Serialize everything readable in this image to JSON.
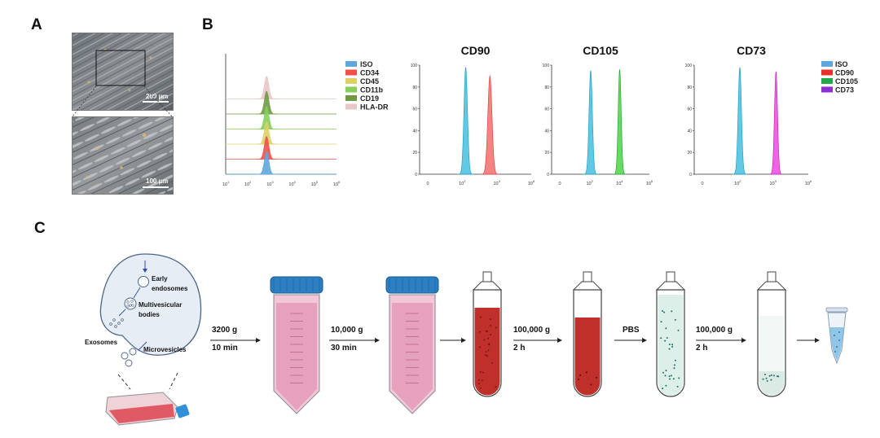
{
  "panels": {
    "a": "A",
    "b": "B",
    "c": "C"
  },
  "panel_a": {
    "top_scale": "200 µm",
    "bottom_scale": "100 µm"
  },
  "panel_b": {
    "overlay_legend": [
      "ISO",
      "CD34",
      "CD45",
      "CD11b",
      "CD19",
      "HLA-DR"
    ],
    "overlay_colors": [
      "#5fa7dd",
      "#f0504a",
      "#ded067",
      "#86cf5c",
      "#6f9a43",
      "#e8c7c6"
    ],
    "marker_titles": [
      "CD90",
      "CD105",
      "CD73"
    ],
    "marker_legend": [
      "ISO",
      "CD90",
      "CD105",
      "CD73"
    ],
    "marker_legend_colors": [
      "#5fa7dd",
      "#e8302a",
      "#22a84a",
      "#8e2fd0"
    ],
    "y_ticks": [
      "0",
      "20",
      "40",
      "60",
      "80",
      "100"
    ],
    "x_ticks": [
      {
        "base": "10",
        "exp": "1"
      },
      {
        "base": "10",
        "exp": "2"
      },
      {
        "base": "10",
        "exp": "3"
      },
      {
        "base": "10",
        "exp": "4"
      },
      {
        "base": "10",
        "exp": "5"
      },
      {
        "base": "10",
        "exp": "6"
      }
    ],
    "x_ticks_zero": [
      {
        "base": "0",
        "exp": ""
      },
      {
        "base": "10",
        "exp": "2"
      },
      {
        "base": "10",
        "exp": "4"
      },
      {
        "base": "10",
        "exp": "6"
      }
    ]
  },
  "chart_data": [
    {
      "type": "area",
      "chart": "overlay",
      "x_scale": "log",
      "xlim": [
        10,
        1000000
      ],
      "series": [
        {
          "name": "ISO",
          "peak_x": 700
        },
        {
          "name": "CD34",
          "peak_x": 700
        },
        {
          "name": "CD45",
          "peak_x": 700
        },
        {
          "name": "CD11b",
          "peak_x": 700
        },
        {
          "name": "CD19",
          "peak_x": 700
        },
        {
          "name": "HLA-DR",
          "peak_x": 700
        }
      ]
    },
    {
      "type": "area",
      "title": "CD90",
      "x_scale": "log",
      "ylim": [
        0,
        100
      ],
      "series": [
        {
          "name": "ISO",
          "peak_x": 300,
          "peak_y": 98
        },
        {
          "name": "CD90",
          "peak_x": 6000,
          "peak_y": 90
        }
      ]
    },
    {
      "type": "area",
      "title": "CD105",
      "x_scale": "log",
      "ylim": [
        0,
        100
      ],
      "series": [
        {
          "name": "ISO",
          "peak_x": 250,
          "peak_y": 95
        },
        {
          "name": "CD105",
          "peak_x": 15000,
          "peak_y": 96
        }
      ]
    },
    {
      "type": "area",
      "title": "CD73",
      "x_scale": "log",
      "ylim": [
        0,
        100
      ],
      "series": [
        {
          "name": "ISO",
          "peak_x": 250,
          "peak_y": 98
        },
        {
          "name": "CD73",
          "peak_x": 20000,
          "peak_y": 94
        }
      ]
    }
  ],
  "panel_c": {
    "cell_labels": [
      "Early",
      "endosomes",
      "Multivesicular",
      "bodies",
      "Exosomes",
      "Microvesicles"
    ],
    "steps": [
      {
        "top": "3200 g",
        "bottom": "10 min"
      },
      {
        "top": "10,000 g",
        "bottom": "30 min"
      },
      {
        "top": "100,000 g",
        "bottom": "2 h"
      },
      {
        "top": "PBS",
        "bottom": ""
      },
      {
        "top": "100,000 g",
        "bottom": "2 h"
      }
    ]
  }
}
